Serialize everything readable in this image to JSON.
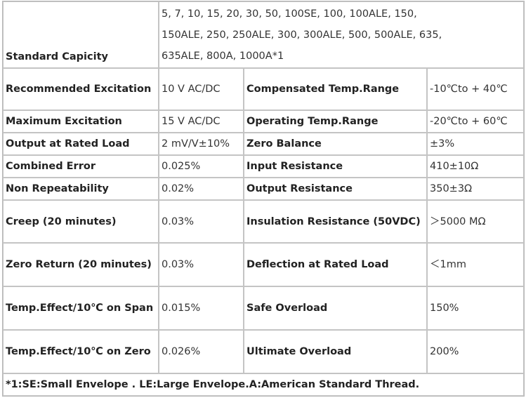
{
  "standard_capacity": {
    "label": "Standard Capicity",
    "lines": [
      "5, 7, 10, 15, 20, 30, 50, 100SE, 100, 100ALE, 150,",
      "150ALE, 250, 250ALE, 300, 300ALE, 500, 500ALE, 635,",
      "635ALE, 800A, 1000A*1"
    ]
  },
  "rows": [
    {
      "k1": "Recommended Excitation",
      "v1": "10 V AC/DC",
      "k2": "Compensated Temp.Range",
      "v2": "-10℃to + 40℃"
    },
    {
      "k1": "Maximum Excitation",
      "v1": "15 V AC/DC",
      "k2": "Operating Temp.Range",
      "v2": "-20℃to + 60℃"
    },
    {
      "k1": "Output at Rated Load",
      "v1": "2 mV/V±10%",
      "k2": "Zero Balance",
      "v2": "±3%"
    },
    {
      "k1": "Combined Error",
      "v1": "0.025%",
      "k2": "Input Resistance",
      "v2": "410±10Ω"
    },
    {
      "k1": "Non Repeatability",
      "v1": "0.02%",
      "k2": "Output Resistance",
      "v2": "350±3Ω"
    },
    {
      "k1": "Creep (20 minutes)",
      "v1": "0.03%",
      "k2": "Insulation Resistance (50VDC)",
      "v2": "＞5000 MΩ"
    },
    {
      "k1": "Zero Return (20 minutes)",
      "v1": "0.03%",
      "k2": "Deflection at Rated Load",
      "v2": "＜1mm"
    },
    {
      "k1": "Temp.Effect/10℃ on Span",
      "v1": "0.015%",
      "k2": "Safe Overload",
      "v2": "150%"
    },
    {
      "k1": "Temp.Effect/10℃ on Zero",
      "v1": "0.026%",
      "k2": "Ultimate Overload",
      "v2": "200%"
    }
  ],
  "footnote": "*1:SE:Small Envelope . LE:Large Envelope.A:American Standard Thread."
}
